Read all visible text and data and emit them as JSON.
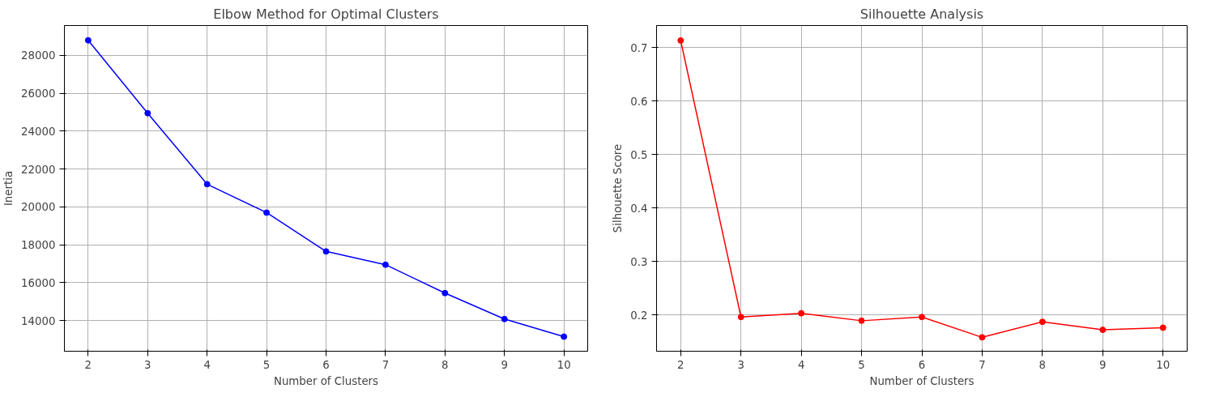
{
  "chart_data": [
    {
      "type": "line",
      "title": "Elbow Method for Optimal Clusters",
      "xlabel": "Number of Clusters",
      "ylabel": "Inertia",
      "x": [
        2,
        3,
        4,
        5,
        6,
        7,
        8,
        9,
        10
      ],
      "series": [
        {
          "color": "#0000ff",
          "values": [
            28800,
            24950,
            21200,
            19700,
            17650,
            16950,
            15450,
            14080,
            13150
          ]
        }
      ],
      "marker": "circle",
      "grid": true,
      "xlim": [
        1.6,
        10.4
      ],
      "xticks": [
        2,
        3,
        4,
        5,
        6,
        7,
        8,
        9,
        10
      ],
      "ylim": [
        12380,
        29580
      ],
      "yticks": [
        14000,
        16000,
        18000,
        20000,
        22000,
        24000,
        26000,
        28000
      ]
    },
    {
      "type": "line",
      "title": "Silhouette Analysis",
      "xlabel": "Number of Clusters",
      "ylabel": "Silhouette Score",
      "x": [
        2,
        3,
        4,
        5,
        6,
        7,
        8,
        9,
        10
      ],
      "series": [
        {
          "color": "#ff0000",
          "values": [
            0.713,
            0.196,
            0.203,
            0.189,
            0.196,
            0.158,
            0.187,
            0.172,
            0.176
          ]
        }
      ],
      "marker": "circle",
      "grid": true,
      "xlim": [
        1.6,
        10.4
      ],
      "xticks": [
        2,
        3,
        4,
        5,
        6,
        7,
        8,
        9,
        10
      ],
      "ylim": [
        0.132,
        0.741
      ],
      "yticks": [
        0.2,
        0.3,
        0.4,
        0.5,
        0.6,
        0.7
      ]
    }
  ]
}
